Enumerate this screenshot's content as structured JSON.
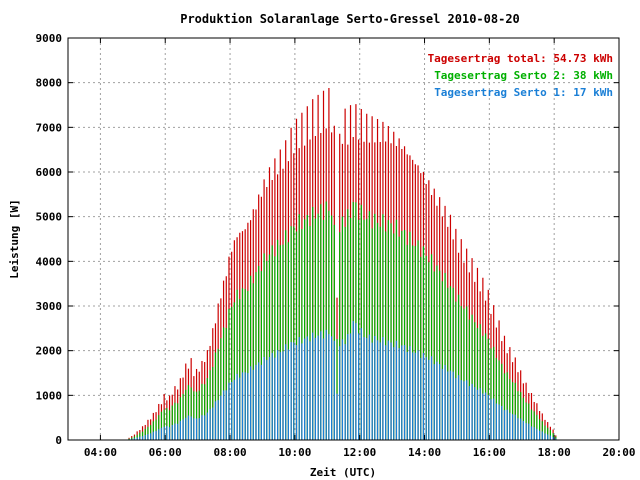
{
  "chart_data": {
    "type": "bar",
    "title": "Produktion Solaranlage Serto-Gressel 2010-08-20",
    "xlabel": "Zeit (UTC)",
    "ylabel": "Leistung [W]",
    "xlim": [
      3.0,
      20.0
    ],
    "ylim": [
      0,
      9000
    ],
    "x_ticks": [
      4,
      6,
      8,
      10,
      12,
      14,
      16,
      18,
      20
    ],
    "x_tick_labels": [
      "04:00",
      "06:00",
      "08:00",
      "10:00",
      "12:00",
      "14:00",
      "16:00",
      "18:00",
      "20:00"
    ],
    "y_ticks": [
      0,
      1000,
      2000,
      3000,
      4000,
      5000,
      6000,
      7000,
      8000,
      9000
    ],
    "y_tick_labels": [
      "0",
      "1000",
      "2000",
      "3000",
      "4000",
      "5000",
      "6000",
      "7000",
      "8000",
      "9000"
    ],
    "grid": true,
    "legend_position": "top-right",
    "legend": [
      {
        "label": "Tagesertrag total: 54.73 kWh",
        "color": "#cc0000"
      },
      {
        "label": "Tagesertrag Serto 2: 38 kWh",
        "color": "#00b000"
      },
      {
        "label": "Tagesertrag Serto 1: 17 kWh",
        "color": "#1a7fd6"
      }
    ],
    "series": [
      {
        "color": "#cc0000",
        "points": [
          [
            4.8,
            20
          ],
          [
            5.0,
            100
          ],
          [
            5.3,
            300
          ],
          [
            5.6,
            550
          ],
          [
            5.9,
            900
          ],
          [
            6.0,
            1050
          ],
          [
            6.1,
            900
          ],
          [
            6.2,
            1100
          ],
          [
            6.4,
            1250
          ],
          [
            6.5,
            1400
          ],
          [
            6.6,
            1650
          ],
          [
            6.8,
            1800
          ],
          [
            6.9,
            1500
          ],
          [
            7.1,
            1700
          ],
          [
            7.3,
            2000
          ],
          [
            7.5,
            2600
          ],
          [
            7.7,
            3300
          ],
          [
            7.9,
            3900
          ],
          [
            8.0,
            4300
          ],
          [
            8.2,
            4700
          ],
          [
            8.5,
            4900
          ],
          [
            8.8,
            5400
          ],
          [
            9.0,
            5800
          ],
          [
            9.2,
            6100
          ],
          [
            9.5,
            6400
          ],
          [
            9.7,
            6600
          ],
          [
            9.9,
            6900
          ],
          [
            10.1,
            7100
          ],
          [
            10.3,
            7200
          ],
          [
            10.5,
            7400
          ],
          [
            10.7,
            7500
          ],
          [
            10.9,
            7600
          ],
          [
            11.0,
            7700
          ],
          [
            11.2,
            7500
          ],
          [
            11.3,
            3500
          ],
          [
            11.4,
            7300
          ],
          [
            11.6,
            7200
          ],
          [
            11.8,
            7400
          ],
          [
            12.0,
            7300
          ],
          [
            12.2,
            7200
          ],
          [
            12.5,
            7150
          ],
          [
            12.8,
            7100
          ],
          [
            13.0,
            7000
          ],
          [
            13.3,
            6800
          ],
          [
            13.6,
            6500
          ],
          [
            13.9,
            6200
          ],
          [
            14.2,
            5800
          ],
          [
            14.5,
            5400
          ],
          [
            14.8,
            5000
          ],
          [
            15.0,
            4600
          ],
          [
            15.3,
            4200
          ],
          [
            15.6,
            3800
          ],
          [
            15.9,
            3400
          ],
          [
            16.2,
            2800
          ],
          [
            16.5,
            2200
          ],
          [
            16.8,
            1800
          ],
          [
            17.1,
            1300
          ],
          [
            17.4,
            900
          ],
          [
            17.7,
            500
          ],
          [
            18.0,
            200
          ],
          [
            18.1,
            20
          ]
        ]
      },
      {
        "color": "#00b000",
        "points": [
          [
            4.8,
            10
          ],
          [
            5.0,
            60
          ],
          [
            5.3,
            200
          ],
          [
            5.6,
            380
          ],
          [
            5.9,
            650
          ],
          [
            6.0,
            750
          ],
          [
            6.1,
            650
          ],
          [
            6.2,
            780
          ],
          [
            6.4,
            880
          ],
          [
            6.5,
            980
          ],
          [
            6.6,
            1150
          ],
          [
            6.8,
            1250
          ],
          [
            6.9,
            1050
          ],
          [
            7.1,
            1200
          ],
          [
            7.3,
            1400
          ],
          [
            7.5,
            1800
          ],
          [
            7.7,
            2300
          ],
          [
            7.9,
            2700
          ],
          [
            8.0,
            3000
          ],
          [
            8.2,
            3300
          ],
          [
            8.5,
            3450
          ],
          [
            8.8,
            3800
          ],
          [
            9.0,
            4050
          ],
          [
            9.2,
            4250
          ],
          [
            9.5,
            4450
          ],
          [
            9.7,
            4600
          ],
          [
            9.9,
            4800
          ],
          [
            10.1,
            4950
          ],
          [
            10.3,
            5000
          ],
          [
            10.5,
            5100
          ],
          [
            10.7,
            5200
          ],
          [
            10.9,
            5250
          ],
          [
            11.0,
            5300
          ],
          [
            11.2,
            5200
          ],
          [
            11.3,
            2400
          ],
          [
            11.4,
            5100
          ],
          [
            11.6,
            5000
          ],
          [
            11.8,
            5400
          ],
          [
            12.0,
            5200
          ],
          [
            12.2,
            5100
          ],
          [
            12.5,
            5000
          ],
          [
            12.8,
            4950
          ],
          [
            13.0,
            4900
          ],
          [
            13.3,
            4750
          ],
          [
            13.6,
            4550
          ],
          [
            13.9,
            4350
          ],
          [
            14.2,
            4100
          ],
          [
            14.5,
            3800
          ],
          [
            14.8,
            3500
          ],
          [
            15.0,
            3250
          ],
          [
            15.3,
            2950
          ],
          [
            15.6,
            2650
          ],
          [
            15.9,
            2380
          ],
          [
            16.2,
            1950
          ],
          [
            16.5,
            1540
          ],
          [
            16.8,
            1260
          ],
          [
            17.1,
            910
          ],
          [
            17.4,
            630
          ],
          [
            17.7,
            350
          ],
          [
            18.0,
            140
          ],
          [
            18.1,
            10
          ]
        ]
      },
      {
        "color": "#1a7fd6",
        "points": [
          [
            4.8,
            5
          ],
          [
            5.0,
            30
          ],
          [
            5.3,
            90
          ],
          [
            5.6,
            170
          ],
          [
            5.9,
            280
          ],
          [
            6.0,
            330
          ],
          [
            6.1,
            280
          ],
          [
            6.2,
            340
          ],
          [
            6.4,
            390
          ],
          [
            6.5,
            440
          ],
          [
            6.6,
            510
          ],
          [
            6.8,
            560
          ],
          [
            6.9,
            470
          ],
          [
            7.1,
            530
          ],
          [
            7.3,
            620
          ],
          [
            7.5,
            800
          ],
          [
            7.7,
            1000
          ],
          [
            7.9,
            1200
          ],
          [
            8.0,
            1300
          ],
          [
            8.2,
            1450
          ],
          [
            8.5,
            1550
          ],
          [
            8.8,
            1700
          ],
          [
            9.0,
            1800
          ],
          [
            9.2,
            1900
          ],
          [
            9.5,
            2000
          ],
          [
            9.7,
            2100
          ],
          [
            9.9,
            2200
          ],
          [
            10.1,
            2250
          ],
          [
            10.3,
            2300
          ],
          [
            10.5,
            2350
          ],
          [
            10.7,
            2400
          ],
          [
            10.9,
            2420
          ],
          [
            11.0,
            2450
          ],
          [
            11.2,
            2400
          ],
          [
            11.3,
            1100
          ],
          [
            11.4,
            2300
          ],
          [
            11.6,
            2250
          ],
          [
            11.8,
            2700
          ],
          [
            12.0,
            2500
          ],
          [
            12.2,
            2350
          ],
          [
            12.5,
            2300
          ],
          [
            12.8,
            2250
          ],
          [
            13.0,
            2200
          ],
          [
            13.3,
            2150
          ],
          [
            13.6,
            2050
          ],
          [
            13.9,
            1950
          ],
          [
            14.2,
            1850
          ],
          [
            14.5,
            1700
          ],
          [
            14.8,
            1580
          ],
          [
            15.0,
            1450
          ],
          [
            15.3,
            1320
          ],
          [
            15.6,
            1190
          ],
          [
            15.9,
            1060
          ],
          [
            16.2,
            870
          ],
          [
            16.5,
            690
          ],
          [
            16.8,
            560
          ],
          [
            17.1,
            410
          ],
          [
            17.4,
            280
          ],
          [
            17.7,
            160
          ],
          [
            18.0,
            60
          ],
          [
            18.1,
            5
          ]
        ]
      }
    ]
  }
}
